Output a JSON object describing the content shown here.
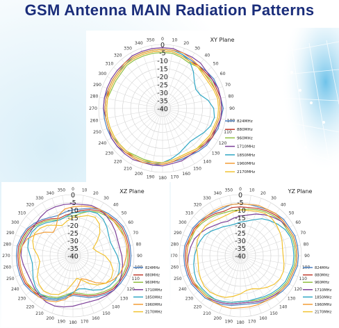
{
  "page": {
    "title": "GSM Antenna MAIN Radiation Patterns"
  },
  "colors": {
    "title": "#1a2d7a",
    "824MHz": "#4a7fc0",
    "880MHz": "#c0392b",
    "960MHz": "#8fbf3f",
    "1710MHz": "#7c3f98",
    "1850MHz": "#2fa7c4",
    "1960MHz": "#f39c34",
    "2170MHz": "#f2c230"
  },
  "chart_data": [
    {
      "type": "polar-line",
      "title": "XY Plane",
      "angle_ticks": [
        "0",
        "10",
        "20",
        "30",
        "40",
        "50",
        "60",
        "70",
        "80",
        "90",
        "100",
        "110",
        "120",
        "130",
        "140",
        "150",
        "160",
        "170",
        "180",
        "190",
        "200",
        "210",
        "220",
        "230",
        "240",
        "250",
        "260",
        "270",
        "280",
        "290",
        "300",
        "310",
        "320",
        "330",
        "340",
        "350"
      ],
      "radial_ticks": [
        "0",
        "-5",
        "-10",
        "-15",
        "-20",
        "-25",
        "-30",
        "-35",
        "-40"
      ],
      "rlim": [
        -40,
        0
      ],
      "angles": [
        0,
        10,
        20,
        30,
        40,
        50,
        60,
        70,
        80,
        90,
        100,
        110,
        120,
        130,
        140,
        150,
        160,
        170,
        180,
        190,
        200,
        210,
        220,
        230,
        240,
        250,
        260,
        270,
        280,
        290,
        300,
        310,
        320,
        330,
        340,
        350
      ],
      "series": [
        {
          "name": "824MHz",
          "values": [
            -3,
            -3,
            -4,
            -5,
            -5,
            -4,
            -3,
            -3,
            -3,
            -2,
            -3,
            -3,
            -4,
            -4,
            -5,
            -6,
            -6,
            -6,
            -5,
            -4,
            -4,
            -4,
            -4,
            -3,
            -3,
            -3,
            -3,
            -3,
            -3,
            -4,
            -4,
            -4,
            -4,
            -3,
            -3,
            -3
          ]
        },
        {
          "name": "880MHz",
          "values": [
            -4,
            -4,
            -5,
            -6,
            -5,
            -5,
            -4,
            -4,
            -3,
            -3,
            -3,
            -4,
            -4,
            -5,
            -6,
            -7,
            -7,
            -6,
            -5,
            -5,
            -5,
            -5,
            -4,
            -4,
            -4,
            -4,
            -4,
            -4,
            -4,
            -5,
            -5,
            -5,
            -4,
            -4,
            -4,
            -4
          ]
        },
        {
          "name": "960MHz",
          "values": [
            -5,
            -5,
            -6,
            -7,
            -6,
            -6,
            -5,
            -5,
            -4,
            -4,
            -4,
            -5,
            -5,
            -6,
            -7,
            -8,
            -8,
            -7,
            -6,
            -6,
            -6,
            -6,
            -5,
            -5,
            -5,
            -5,
            -5,
            -5,
            -5,
            -6,
            -6,
            -6,
            -5,
            -5,
            -5,
            -5
          ]
        },
        {
          "name": "1710MHz",
          "values": [
            -2,
            -2,
            -3,
            -3,
            -3,
            -4,
            -4,
            -3,
            -3,
            -3,
            -3,
            -4,
            -5,
            -5,
            -6,
            -6,
            -5,
            -5,
            -4,
            -4,
            -4,
            -3,
            -3,
            -3,
            -3,
            -4,
            -4,
            -3,
            -3,
            -3,
            -3,
            -3,
            -3,
            -2,
            -2,
            -2
          ]
        },
        {
          "name": "1850MHz",
          "values": [
            -3,
            -3,
            -4,
            -6,
            -10,
            -14,
            -16,
            -15,
            -11,
            -8,
            -7,
            -8,
            -10,
            -12,
            -13,
            -12,
            -10,
            -8,
            -6,
            -5,
            -5,
            -5,
            -5,
            -5,
            -4,
            -4,
            -4,
            -4,
            -4,
            -4,
            -4,
            -4,
            -4,
            -3,
            -3,
            -3
          ]
        },
        {
          "name": "1960MHz",
          "values": [
            -3,
            -3,
            -3,
            -4,
            -5,
            -6,
            -6,
            -5,
            -4,
            -4,
            -4,
            -5,
            -5,
            -6,
            -6,
            -7,
            -7,
            -6,
            -5,
            -5,
            -4,
            -4,
            -4,
            -4,
            -4,
            -4,
            -4,
            -4,
            -4,
            -4,
            -4,
            -4,
            -3,
            -3,
            -3,
            -3
          ]
        },
        {
          "name": "2170MHz",
          "values": [
            -4,
            -4,
            -5,
            -6,
            -6,
            -7,
            -7,
            -6,
            -5,
            -5,
            -5,
            -6,
            -6,
            -7,
            -7,
            -8,
            -8,
            -7,
            -6,
            -6,
            -5,
            -5,
            -5,
            -5,
            -5,
            -5,
            -5,
            -5,
            -5,
            -5,
            -5,
            -5,
            -4,
            -4,
            -4,
            -4
          ]
        }
      ]
    },
    {
      "type": "polar-line",
      "title": "XZ Plane",
      "angle_ticks": [
        "0",
        "10",
        "20",
        "30",
        "40",
        "50",
        "60",
        "70",
        "80",
        "90",
        "100",
        "110",
        "120",
        "130",
        "140",
        "150",
        "160",
        "170",
        "180",
        "190",
        "200",
        "210",
        "220",
        "230",
        "240",
        "250",
        "260",
        "270",
        "280",
        "290",
        "300",
        "310",
        "320",
        "330",
        "340",
        "350"
      ],
      "radial_ticks": [
        "0",
        "-5",
        "-10",
        "-15",
        "-20",
        "-25",
        "-30",
        "-35",
        "-40"
      ],
      "rlim": [
        -40,
        0
      ],
      "angles": [
        0,
        10,
        20,
        30,
        40,
        50,
        60,
        70,
        80,
        90,
        100,
        110,
        120,
        130,
        140,
        150,
        160,
        170,
        180,
        190,
        200,
        210,
        220,
        230,
        240,
        250,
        260,
        270,
        280,
        290,
        300,
        310,
        320,
        330,
        340,
        350
      ],
      "series": [
        {
          "name": "824MHz",
          "values": [
            -10,
            -9,
            -7,
            -5,
            -4,
            -3,
            -2,
            -2,
            -2,
            -2,
            -2,
            -3,
            -4,
            -5,
            -7,
            -9,
            -11,
            -13,
            -14,
            -12,
            -9,
            -7,
            -5,
            -4,
            -3,
            -3,
            -3,
            -3,
            -3,
            -4,
            -5,
            -7,
            -9,
            -11,
            -12,
            -11
          ]
        },
        {
          "name": "880MHz",
          "values": [
            -12,
            -10,
            -8,
            -6,
            -5,
            -4,
            -3,
            -3,
            -3,
            -3,
            -3,
            -4,
            -5,
            -6,
            -8,
            -10,
            -12,
            -14,
            -15,
            -13,
            -10,
            -8,
            -6,
            -5,
            -4,
            -4,
            -4,
            -4,
            -4,
            -5,
            -6,
            -8,
            -10,
            -12,
            -14,
            -13
          ]
        },
        {
          "name": "960MHz",
          "values": [
            -14,
            -12,
            -9,
            -7,
            -6,
            -5,
            -4,
            -4,
            -4,
            -4,
            -4,
            -5,
            -6,
            -7,
            -9,
            -11,
            -13,
            -15,
            -16,
            -14,
            -11,
            -9,
            -7,
            -6,
            -5,
            -5,
            -5,
            -5,
            -5,
            -6,
            -7,
            -9,
            -11,
            -13,
            -15,
            -14
          ]
        },
        {
          "name": "1710MHz",
          "values": [
            -6,
            -6,
            -5,
            -5,
            -6,
            -7,
            -8,
            -9,
            -9,
            -8,
            -7,
            -6,
            -5,
            -5,
            -6,
            -7,
            -8,
            -8,
            -7,
            -6,
            -5,
            -5,
            -6,
            -7,
            -8,
            -8,
            -7,
            -6,
            -6,
            -7,
            -8,
            -8,
            -7,
            -6,
            -6,
            -6
          ]
        },
        {
          "name": "1850MHz",
          "values": [
            -12,
            -11,
            -9,
            -8,
            -9,
            -11,
            -13,
            -14,
            -13,
            -11,
            -9,
            -8,
            -8,
            -9,
            -11,
            -14,
            -17,
            -18,
            -16,
            -13,
            -10,
            -8,
            -7,
            -8,
            -10,
            -12,
            -13,
            -12,
            -10,
            -9,
            -9,
            -10,
            -12,
            -14,
            -15,
            -14
          ]
        },
        {
          "name": "1960MHz",
          "values": [
            -8,
            -7,
            -6,
            -5,
            -5,
            -5,
            -5,
            -4,
            -4,
            -5,
            -6,
            -7,
            -9,
            -12,
            -17,
            -22,
            -24,
            -20,
            -15,
            -11,
            -8,
            -6,
            -5,
            -5,
            -5,
            -5,
            -5,
            -5,
            -6,
            -8,
            -12,
            -16,
            -20,
            -18,
            -12,
            -9
          ]
        },
        {
          "name": "2170MHz",
          "values": [
            -15,
            -14,
            -12,
            -11,
            -13,
            -17,
            -22,
            -26,
            -24,
            -19,
            -15,
            -12,
            -11,
            -12,
            -15,
            -19,
            -23,
            -25,
            -22,
            -17,
            -13,
            -11,
            -10,
            -11,
            -13,
            -16,
            -18,
            -17,
            -14,
            -12,
            -11,
            -12,
            -14,
            -17,
            -19,
            -17
          ]
        }
      ]
    },
    {
      "type": "polar-line",
      "title": "YZ Plane",
      "angle_ticks": [
        "0",
        "10",
        "20",
        "30",
        "40",
        "50",
        "60",
        "70",
        "80",
        "90",
        "100",
        "110",
        "120",
        "130",
        "140",
        "150",
        "160",
        "170",
        "180",
        "190",
        "200",
        "210",
        "220",
        "230",
        "240",
        "250",
        "260",
        "270",
        "280",
        "290",
        "300",
        "310",
        "320",
        "330",
        "340",
        "350"
      ],
      "radial_ticks": [
        "0",
        "-5",
        "-10",
        "-15",
        "-20",
        "-25",
        "-30",
        "-35",
        "-40"
      ],
      "rlim": [
        -40,
        0
      ],
      "angles": [
        0,
        10,
        20,
        30,
        40,
        50,
        60,
        70,
        80,
        90,
        100,
        110,
        120,
        130,
        140,
        150,
        160,
        170,
        180,
        190,
        200,
        210,
        220,
        230,
        240,
        250,
        260,
        270,
        280,
        290,
        300,
        310,
        320,
        330,
        340,
        350
      ],
      "series": [
        {
          "name": "824MHz",
          "values": [
            -6,
            -6,
            -6,
            -5,
            -4,
            -3,
            -3,
            -2,
            -2,
            -2,
            -2,
            -3,
            -3,
            -4,
            -5,
            -6,
            -7,
            -8,
            -8,
            -7,
            -6,
            -5,
            -4,
            -4,
            -3,
            -3,
            -3,
            -3,
            -3,
            -4,
            -4,
            -5,
            -6,
            -7,
            -7,
            -6
          ]
        },
        {
          "name": "880MHz",
          "values": [
            -8,
            -8,
            -7,
            -6,
            -5,
            -4,
            -4,
            -3,
            -3,
            -3,
            -3,
            -4,
            -4,
            -5,
            -6,
            -7,
            -8,
            -9,
            -9,
            -8,
            -7,
            -6,
            -5,
            -5,
            -4,
            -4,
            -4,
            -4,
            -4,
            -5,
            -5,
            -6,
            -7,
            -8,
            -9,
            -8
          ]
        },
        {
          "name": "960MHz",
          "values": [
            -10,
            -9,
            -8,
            -7,
            -6,
            -5,
            -5,
            -4,
            -4,
            -4,
            -4,
            -5,
            -5,
            -6,
            -7,
            -8,
            -9,
            -10,
            -10,
            -9,
            -8,
            -7,
            -6,
            -6,
            -5,
            -5,
            -5,
            -5,
            -5,
            -6,
            -6,
            -7,
            -8,
            -9,
            -10,
            -10
          ]
        },
        {
          "name": "1710MHz",
          "values": [
            -14,
            -13,
            -11,
            -9,
            -7,
            -5,
            -4,
            -3,
            -3,
            -3,
            -3,
            -4,
            -4,
            -5,
            -6,
            -7,
            -8,
            -9,
            -9,
            -8,
            -7,
            -6,
            -5,
            -5,
            -5,
            -5,
            -5,
            -6,
            -7,
            -8,
            -10,
            -12,
            -14,
            -15,
            -16,
            -15
          ]
        },
        {
          "name": "1850MHz",
          "values": [
            -18,
            -17,
            -15,
            -12,
            -10,
            -8,
            -6,
            -5,
            -5,
            -5,
            -5,
            -6,
            -6,
            -7,
            -8,
            -9,
            -10,
            -10,
            -10,
            -9,
            -8,
            -7,
            -7,
            -7,
            -7,
            -8,
            -9,
            -10,
            -11,
            -12,
            -13,
            -15,
            -17,
            -18,
            -19,
            -19
          ]
        },
        {
          "name": "1960MHz",
          "values": [
            -6,
            -6,
            -5,
            -5,
            -4,
            -4,
            -4,
            -3,
            -3,
            -3,
            -3,
            -4,
            -4,
            -5,
            -5,
            -6,
            -6,
            -6,
            -6,
            -5,
            -5,
            -5,
            -5,
            -5,
            -5,
            -5,
            -5,
            -5,
            -5,
            -5,
            -6,
            -6,
            -6,
            -6,
            -6,
            -6
          ]
        },
        {
          "name": "2170MHz",
          "values": [
            -10,
            -10,
            -9,
            -8,
            -8,
            -9,
            -10,
            -11,
            -12,
            -12,
            -11,
            -10,
            -10,
            -11,
            -13,
            -15,
            -17,
            -17,
            -15,
            -13,
            -11,
            -10,
            -9,
            -9,
            -10,
            -11,
            -12,
            -12,
            -11,
            -10,
            -10,
            -10,
            -11,
            -12,
            -12,
            -11
          ]
        }
      ]
    }
  ]
}
